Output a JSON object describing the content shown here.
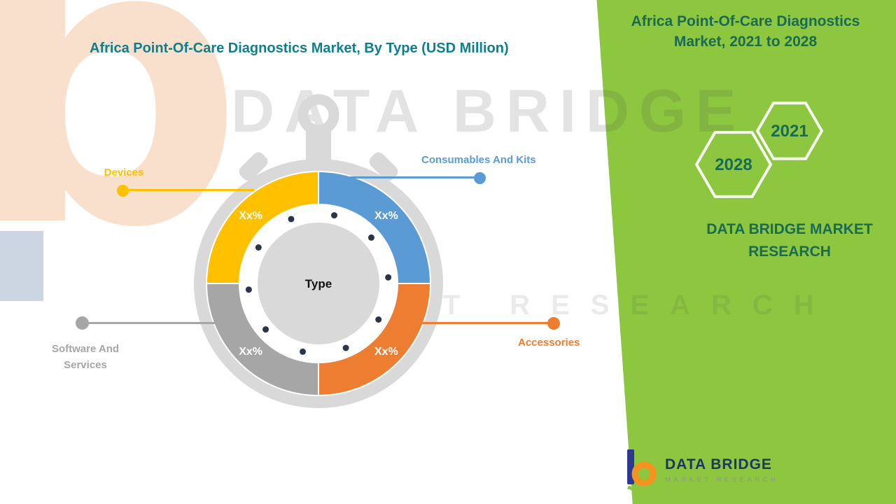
{
  "chart_data": {
    "type": "pie",
    "subtype": "donut-stopwatch",
    "title": "Africa Point-Of-Care Diagnostics Market, By Type (USD Million)",
    "center_label": "Type",
    "legend_position": "callouts",
    "segments": [
      {
        "label": "Devices",
        "value_label": "Xx%",
        "fraction": 0.25,
        "color": "#FFC000"
      },
      {
        "label": "Consumables And Kits",
        "value_label": "Xx%",
        "fraction": 0.25,
        "color": "#5B9BD5"
      },
      {
        "label": "Accessories",
        "value_label": "Xx%",
        "fraction": 0.25,
        "color": "#ED7D31"
      },
      {
        "label": "Software And Services",
        "value_label": "Xx%",
        "fraction": 0.25,
        "color": "#A6A6A6"
      }
    ]
  },
  "side_panel": {
    "title": "Africa Point-Of-Care Diagnostics Market, 2021 to 2028",
    "hexagons": [
      {
        "label": "2028"
      },
      {
        "label": "2021"
      }
    ],
    "brand": "DATA BRIDGE MARKET RESEARCH"
  },
  "logo": {
    "name": "DATA BRIDGE",
    "tagline": "MARKET RESEARCH"
  },
  "watermark": {
    "line1": "DATA BRIDGE",
    "line2": "MARKET RESEARCH"
  },
  "colors": {
    "panel_green": "#8DC63F",
    "panel_text": "#1A6B52",
    "heading_teal": "#0E7F8C",
    "logo_navy": "#1B3764",
    "dial_gray": "#D9D9D9",
    "dot_navy": "#2B3547"
  }
}
